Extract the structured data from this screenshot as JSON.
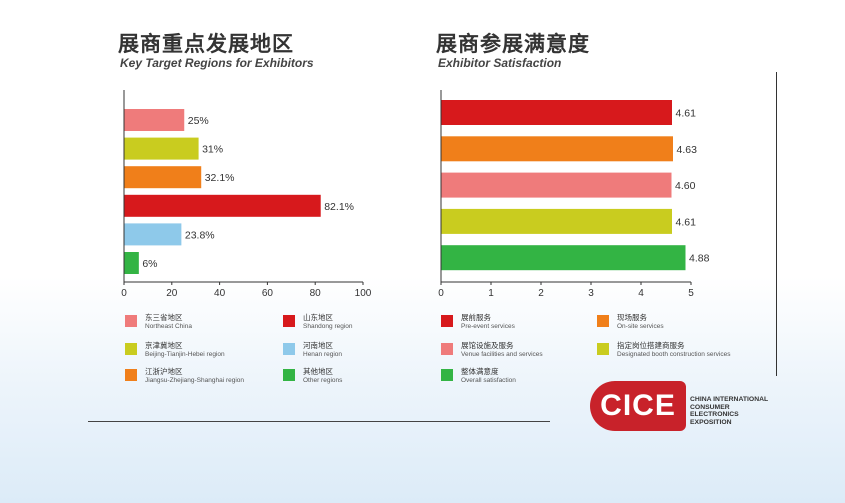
{
  "left_panel": {
    "title_cn": "展商重点发展地区",
    "title_en": "Key Target Regions for Exhibitors",
    "legend": [
      {
        "cn": "东三省地区",
        "en": "Northeast China",
        "color": "#ef7b7b"
      },
      {
        "cn": "山东地区",
        "en": "Shandong region",
        "color": "#d7191c"
      },
      {
        "cn": "京津冀地区",
        "en": "Beijing-Tianjin-Hebei region",
        "color": "#c9cc1f"
      },
      {
        "cn": "河南地区",
        "en": "Henan region",
        "color": "#8ec9ea"
      },
      {
        "cn": "江浙沪地区",
        "en": "Jiangsu-Zhejiang-Shanghai region",
        "color": "#f07f1a"
      },
      {
        "cn": "其他地区",
        "en": "Other regions",
        "color": "#33b444"
      }
    ]
  },
  "right_panel": {
    "title_cn": "展商参展满意度",
    "title_en": "Exhibitor Satisfaction",
    "legend": [
      {
        "cn": "展前服务",
        "en": "Pre-event services",
        "color": "#d7191c"
      },
      {
        "cn": "现场服务",
        "en": "On-site services",
        "color": "#f07f1a"
      },
      {
        "cn": "展馆设施及服务",
        "en": "Venue facilities and services",
        "color": "#ef7b7b"
      },
      {
        "cn": "指定岗位搭建商服务",
        "en": "Designated booth construction services",
        "color": "#c9cc1f"
      },
      {
        "cn": "整体满意度",
        "en": "Overall satisfaction",
        "color": "#33b444"
      }
    ]
  },
  "logo": {
    "mark": "CICE",
    "line1": "CHINA INTERNATIONAL",
    "line2": "CONSUMER ELECTRONICS",
    "line3": "EXPOSITION"
  },
  "chart_data": [
    {
      "type": "bar",
      "orientation": "horizontal",
      "categories": [
        "Northeast China",
        "Beijing-Tianjin-Hebei region",
        "Jiangsu-Zhejiang-Shanghai region",
        "Shandong region",
        "Henan region",
        "Other regions"
      ],
      "values": [
        25,
        31,
        32.1,
        82.1,
        23.8,
        6
      ],
      "value_labels": [
        "25%",
        "31%",
        "32.1%",
        "82.1%",
        "23.8%",
        "6%"
      ],
      "colors": [
        "#ef7b7b",
        "#c9cc1f",
        "#f07f1a",
        "#d7191c",
        "#8ec9ea",
        "#33b444"
      ],
      "xlim": [
        0,
        100
      ],
      "xticks": [
        "0",
        "20",
        "40",
        "60",
        "80",
        "100"
      ],
      "title": "展商重点发展地区",
      "grid": false,
      "legend": "bottom"
    },
    {
      "type": "bar",
      "orientation": "horizontal",
      "categories": [
        "Pre-event services",
        "On-site services",
        "Venue facilities and services",
        "Designated booth construction services",
        "Overall satisfaction"
      ],
      "values": [
        4.61,
        4.63,
        4.6,
        4.61,
        4.88
      ],
      "value_labels": [
        "4.61",
        "4.63",
        "4.60",
        "4.61",
        "4.88"
      ],
      "colors": [
        "#d7191c",
        "#f07f1a",
        "#ef7b7b",
        "#c9cc1f",
        "#33b444"
      ],
      "xlim": [
        0,
        5
      ],
      "xticks": [
        "0",
        "1",
        "2",
        "3",
        "4",
        "5"
      ],
      "title": "展商参展满意度",
      "grid": false,
      "legend": "bottom"
    }
  ]
}
